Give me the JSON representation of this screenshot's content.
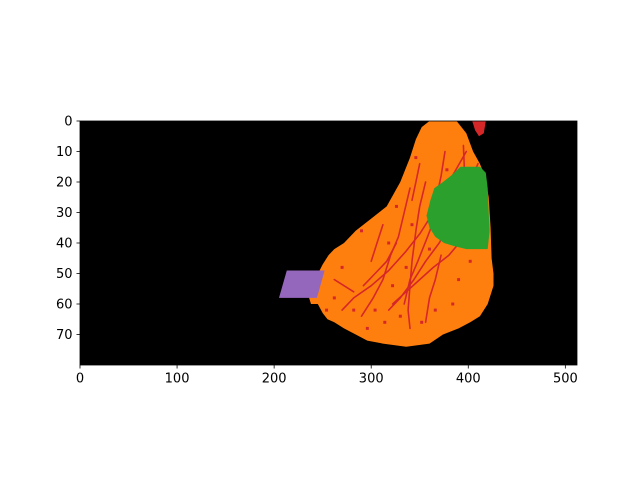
{
  "chart_data": {
    "type": "heatmap",
    "title": "",
    "xlabel": "",
    "ylabel": "",
    "xlim": [
      0,
      512
    ],
    "ylim": [
      80,
      0
    ],
    "x_ticks": [
      0,
      100,
      200,
      300,
      400,
      500
    ],
    "y_ticks": [
      0,
      10,
      20,
      30,
      40,
      50,
      60,
      70
    ],
    "x_tick_labels": [
      "0",
      "100",
      "200",
      "300",
      "400",
      "500"
    ],
    "y_tick_labels": [
      "0",
      "10",
      "20",
      "30",
      "40",
      "50",
      "60",
      "70"
    ],
    "grid": false,
    "background_color": "#000000",
    "regions": [
      {
        "class": "orange-region",
        "color": "#ff7f0e",
        "polygon": [
          [
            360,
            0
          ],
          [
            388,
            0
          ],
          [
            398,
            4
          ],
          [
            405,
            10
          ],
          [
            412,
            14
          ],
          [
            417,
            18
          ],
          [
            421,
            25
          ],
          [
            423,
            35
          ],
          [
            424,
            45
          ],
          [
            426,
            50
          ],
          [
            426,
            54
          ],
          [
            420,
            60
          ],
          [
            412,
            64
          ],
          [
            402,
            66
          ],
          [
            390,
            68
          ],
          [
            374,
            70
          ],
          [
            360,
            73
          ],
          [
            336,
            74
          ],
          [
            312,
            73
          ],
          [
            296,
            72
          ],
          [
            284,
            70
          ],
          [
            272,
            68
          ],
          [
            262,
            66
          ],
          [
            255,
            65
          ],
          [
            250,
            63
          ],
          [
            245,
            60
          ],
          [
            238,
            60
          ],
          [
            236,
            58
          ],
          [
            242,
            52
          ],
          [
            250,
            47
          ],
          [
            256,
            44
          ],
          [
            262,
            42
          ],
          [
            272,
            40
          ],
          [
            284,
            36
          ],
          [
            300,
            32
          ],
          [
            316,
            28
          ],
          [
            330,
            20
          ],
          [
            340,
            12
          ],
          [
            346,
            6
          ],
          [
            352,
            2
          ]
        ]
      },
      {
        "class": "green-region",
        "color": "#2ca02c",
        "polygon": [
          [
            392,
            15
          ],
          [
            412,
            15
          ],
          [
            418,
            17
          ],
          [
            420,
            22
          ],
          [
            421,
            30
          ],
          [
            422,
            36
          ],
          [
            420,
            42
          ],
          [
            410,
            42
          ],
          [
            398,
            42
          ],
          [
            385,
            41
          ],
          [
            375,
            40
          ],
          [
            366,
            38
          ],
          [
            360,
            35
          ],
          [
            357,
            31
          ],
          [
            361,
            26
          ],
          [
            365,
            22
          ],
          [
            374,
            20
          ],
          [
            382,
            18
          ]
        ]
      },
      {
        "class": "purple-region",
        "color": "#9467bd",
        "polygon": [
          [
            213,
            49
          ],
          [
            252,
            49
          ],
          [
            244,
            58
          ],
          [
            205,
            58
          ]
        ]
      },
      {
        "class": "red-patch-top",
        "color": "#d62728",
        "polygon": [
          [
            404,
            0
          ],
          [
            418,
            0
          ],
          [
            416,
            4
          ],
          [
            411,
            5
          ],
          [
            407,
            3
          ]
        ]
      }
    ],
    "red_lines": {
      "class": "red-structures",
      "color": "#d62728",
      "width": 1.6,
      "paths": [
        [
          [
            398,
            10
          ],
          [
            380,
            20
          ],
          [
            364,
            30
          ],
          [
            350,
            37
          ],
          [
            335,
            43
          ],
          [
            318,
            49
          ],
          [
            300,
            54
          ],
          [
            282,
            58
          ],
          [
            270,
            62
          ]
        ],
        [
          [
            410,
            14
          ],
          [
            396,
            24
          ],
          [
            384,
            32
          ],
          [
            370,
            40
          ],
          [
            356,
            46
          ],
          [
            344,
            52
          ],
          [
            330,
            58
          ],
          [
            318,
            62
          ]
        ],
        [
          [
            385,
            18
          ],
          [
            370,
            28
          ],
          [
            358,
            38
          ],
          [
            348,
            46
          ],
          [
            340,
            52
          ],
          [
            334,
            60
          ]
        ],
        [
          [
            356,
            20
          ],
          [
            350,
            28
          ],
          [
            346,
            36
          ],
          [
            342,
            46
          ],
          [
            340,
            54
          ],
          [
            338,
            62
          ],
          [
            340,
            68
          ]
        ],
        [
          [
            340,
            22
          ],
          [
            334,
            30
          ],
          [
            328,
            38
          ],
          [
            320,
            44
          ],
          [
            312,
            52
          ],
          [
            302,
            58
          ],
          [
            290,
            64
          ]
        ],
        [
          [
            396,
            38
          ],
          [
            380,
            44
          ],
          [
            364,
            48
          ],
          [
            350,
            52
          ],
          [
            336,
            56
          ],
          [
            322,
            60
          ]
        ],
        [
          [
            395,
            8
          ],
          [
            396,
            16
          ],
          [
            396,
            24
          ]
        ],
        [
          [
            372,
            44
          ],
          [
            366,
            52
          ],
          [
            360,
            58
          ],
          [
            356,
            66
          ]
        ],
        [
          [
            326,
            40
          ],
          [
            316,
            46
          ],
          [
            304,
            50
          ],
          [
            292,
            54
          ]
        ],
        [
          [
            376,
            10
          ],
          [
            372,
            18
          ],
          [
            368,
            24
          ]
        ],
        [
          [
            312,
            34
          ],
          [
            306,
            40
          ],
          [
            300,
            46
          ]
        ],
        [
          [
            400,
            20
          ],
          [
            398,
            28
          ],
          [
            402,
            36
          ]
        ],
        [
          [
            350,
            14
          ],
          [
            346,
            20
          ],
          [
            342,
            26
          ]
        ],
        [
          [
            262,
            52
          ],
          [
            272,
            54
          ],
          [
            282,
            56
          ]
        ]
      ]
    },
    "red_speckles": {
      "class": "red-speckles",
      "color": "#d62728",
      "points": [
        [
          410,
          22
        ],
        [
          384,
          60
        ],
        [
          304,
          62
        ],
        [
          290,
          36
        ],
        [
          262,
          58
        ],
        [
          352,
          66
        ],
        [
          414,
          30
        ],
        [
          402,
          46
        ],
        [
          378,
          16
        ],
        [
          330,
          64
        ],
        [
          318,
          40
        ],
        [
          270,
          48
        ],
        [
          346,
          12
        ],
        [
          366,
          62
        ],
        [
          296,
          68
        ],
        [
          254,
          62
        ],
        [
          282,
          62
        ],
        [
          390,
          52
        ],
        [
          336,
          48
        ],
        [
          406,
          40
        ],
        [
          322,
          54
        ],
        [
          314,
          66
        ],
        [
          360,
          42
        ],
        [
          342,
          34
        ],
        [
          326,
          28
        ]
      ]
    }
  }
}
